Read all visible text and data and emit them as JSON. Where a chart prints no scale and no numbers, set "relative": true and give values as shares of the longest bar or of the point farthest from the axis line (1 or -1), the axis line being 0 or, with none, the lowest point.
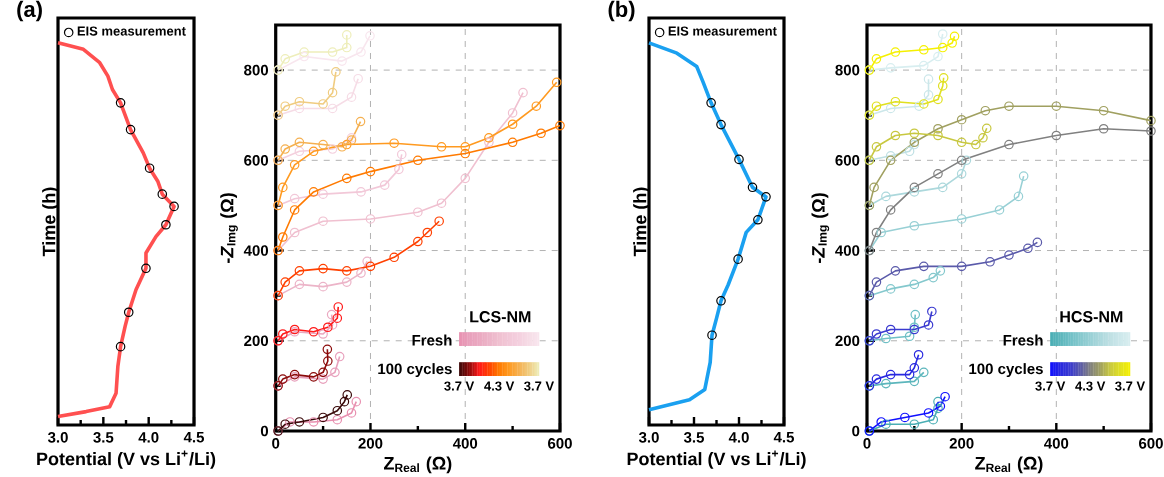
{
  "chart_data": [
    {
      "type": "line",
      "title": "(a)",
      "xlabel": "Potential (V vs Li$^{+}$/Li)",
      "ylabel": "Time (h)",
      "relative": true,
      "xlim": [
        3.0,
        4.5
      ],
      "xticks": [
        {
          "value": 3,
          "label": "3.0"
        },
        {
          "value": 3.25,
          "label": null
        },
        {
          "value": 3.5,
          "label": "3.5"
        },
        {
          "value": 3.75,
          "label": null
        },
        {
          "value": 4,
          "label": "4.0"
        },
        {
          "value": 4.25,
          "label": null
        },
        {
          "value": 4.5,
          "label": "4.5"
        }
      ],
      "tick_labels": "x",
      "legend": "top left",
      "series": [
        {
          "color": "#ff5050",
          "x": [
            3.0,
            3.28,
            3.46,
            3.55,
            3.6,
            3.69,
            3.8,
            3.94,
            4.01,
            4.1,
            4.15,
            4.28,
            4.19,
            4.08,
            3.97,
            3.97,
            3.86,
            3.78,
            3.74,
            3.69,
            3.66,
            3.64,
            3.57,
            3.31,
            3.0
          ],
          "values": [
            1,
            0.983,
            0.948,
            0.913,
            0.878,
            0.843,
            0.773,
            0.712,
            0.672,
            0.638,
            0.604,
            0.572,
            0.524,
            0.493,
            0.45,
            0.41,
            0.354,
            0.295,
            0.258,
            0.205,
            0.153,
            0.083,
            0.048,
            0.035,
            0.022
          ]
        },
        {
          "name": "EIS measurement",
          "type": "scatter",
          "marker": "circle",
          "color": "#000000",
          "x": [
            3.69,
            3.8,
            4.01,
            4.15,
            4.28,
            4.19,
            3.97,
            3.78,
            3.69
          ],
          "values": [
            0.843,
            0.773,
            0.672,
            0.604,
            0.572,
            0.524,
            0.41,
            0.295,
            0.205
          ]
        }
      ]
    },
    {
      "type": "line",
      "xlabel": "Z$_{Real}$ (Ω)",
      "ylabel": "-*Z*$_{Img}$ (Ω)",
      "legend_title": "LCS-NM",
      "annotations": [
        "Fresh",
        "100 cycles",
        "3.7 V",
        "4.3 V",
        "3.7 V"
      ],
      "xlim": [
        0,
        600
      ],
      "ylim": [
        0,
        900
      ],
      "xticks": [
        0,
        {
          "value": 100,
          "label": null
        },
        200,
        {
          "value": 300,
          "label": null
        },
        400,
        {
          "value": 500,
          "label": null
        },
        600
      ],
      "yticks": [
        0,
        {
          "value": 100,
          "label": null
        },
        200,
        {
          "value": 300,
          "label": null
        },
        400,
        {
          "value": 500,
          "label": null
        },
        600,
        {
          "value": 700,
          "label": null
        },
        800
      ],
      "grid": true,
      "marker": "circle",
      "line_style": "solid",
      "series": [
        {
          "color": "#e890b0",
          "x": [
            5,
            30,
            80,
            130,
            160,
            170
          ],
          "values": [
            0,
            20,
            20,
            25,
            40,
            65
          ]
        },
        {
          "color": "#e8a0bc",
          "x": [
            5,
            40,
            100,
            125,
            135
          ],
          "values": [
            100,
            120,
            115,
            130,
            165
          ]
        },
        {
          "color": "#eaa8c0",
          "x": [
            5,
            40,
            100,
            120,
            118
          ],
          "values": [
            200,
            220,
            215,
            235,
            258
          ]
        },
        {
          "color": "#ecb4c8",
          "x": [
            5,
            50,
            100,
            150,
            180,
            193
          ],
          "values": [
            300,
            325,
            320,
            330,
            350,
            376
          ]
        },
        {
          "color": "#f0c0d0",
          "x": [
            5,
            40,
            100,
            200,
            300,
            350,
            400,
            450,
            500,
            522
          ],
          "values": [
            400,
            440,
            465,
            470,
            485,
            505,
            560,
            640,
            705,
            750
          ]
        },
        {
          "color": "#f2c8d8",
          "x": [
            5,
            40,
            100,
            180,
            230,
            260,
            266
          ],
          "values": [
            500,
            515,
            525,
            530,
            545,
            580,
            613
          ]
        },
        {
          "color": "#f4d0de",
          "x": [
            5,
            50,
            120,
            160
          ],
          "values": [
            600,
            620,
            625,
            650
          ]
        },
        {
          "color": "#f6dce6",
          "x": [
            5,
            50,
            120,
            160,
            174
          ],
          "values": [
            700,
            715,
            715,
            740,
            781
          ]
        },
        {
          "color": "#f8e6ee",
          "x": [
            5,
            60,
            140,
            180,
            199
          ],
          "values": [
            800,
            830,
            820,
            840,
            876
          ]
        },
        {
          "color": "#3a0a0a",
          "x": [
            5,
            20,
            50,
            100,
            130,
            145,
            151
          ],
          "values": [
            0,
            15,
            20,
            30,
            45,
            65,
            80
          ]
        },
        {
          "color": "#8b0a0a",
          "x": [
            5,
            15,
            40,
            80,
            100,
            110,
            109
          ],
          "values": [
            100,
            115,
            125,
            120,
            130,
            155,
            181
          ]
        },
        {
          "color": "#ff1a1a",
          "x": [
            5,
            15,
            40,
            80,
            110,
            130,
            132
          ],
          "values": [
            200,
            215,
            225,
            220,
            230,
            250,
            275
          ]
        },
        {
          "color": "#ff4000",
          "x": [
            5,
            20,
            50,
            100,
            150,
            200,
            250,
            300,
            320,
            345
          ],
          "values": [
            300,
            330,
            355,
            360,
            355,
            365,
            385,
            420,
            440,
            465
          ]
        },
        {
          "color": "#ff7a00",
          "x": [
            5,
            15,
            40,
            80,
            150,
            200,
            300,
            400,
            500,
            560,
            600
          ],
          "values": [
            400,
            430,
            490,
            530,
            560,
            575,
            600,
            615,
            640,
            660,
            677
          ]
        },
        {
          "color": "#ff9a20",
          "x": [
            5,
            15,
            40,
            80,
            150,
            250,
            350,
            400,
            450,
            500,
            550,
            593
          ],
          "values": [
            500,
            540,
            590,
            620,
            635,
            638,
            630,
            630,
            650,
            680,
            720,
            773
          ]
        },
        {
          "color": "#f5b050",
          "x": [
            5,
            20,
            50,
            100,
            140,
            160,
            179
          ],
          "values": [
            600,
            625,
            640,
            635,
            630,
            645,
            686
          ]
        },
        {
          "color": "#f0cc80",
          "x": [
            5,
            20,
            50,
            100,
            120,
            127
          ],
          "values": [
            700,
            720,
            730,
            725,
            750,
            796
          ]
        },
        {
          "color": "#eeeebb",
          "x": [
            5,
            20,
            60,
            120,
            150,
            150
          ],
          "values": [
            800,
            825,
            840,
            840,
            850,
            878
          ]
        }
      ]
    },
    {
      "type": "line",
      "title": "(b)",
      "xlabel": "Potential (V vs Li$^{+}$/Li)",
      "ylabel": "Time (h)",
      "relative": true,
      "xlim": [
        3.0,
        4.5
      ],
      "xticks": [
        {
          "value": 3,
          "label": "3.0"
        },
        {
          "value": 3.25,
          "label": null
        },
        {
          "value": 3.5,
          "label": "3.5"
        },
        {
          "value": 3.75,
          "label": null
        },
        {
          "value": 4,
          "label": "4.0"
        },
        {
          "value": 4.25,
          "label": null
        },
        {
          "value": 4.5,
          "label": "4.5"
        }
      ],
      "tick_labels": "x",
      "legend": "top left",
      "series": [
        {
          "color": "#1aa0f0",
          "x": [
            3.0,
            3.31,
            3.53,
            3.6,
            3.69,
            3.8,
            4.0,
            4.15,
            4.3,
            4.21,
            4.08,
            3.99,
            3.88,
            3.8,
            3.75,
            3.7,
            3.68,
            3.62,
            3.45,
            3.0
          ],
          "values": [
            1,
            0.973,
            0.938,
            0.898,
            0.843,
            0.786,
            0.695,
            0.622,
            0.597,
            0.537,
            0.504,
            0.434,
            0.367,
            0.325,
            0.279,
            0.235,
            0.164,
            0.093,
            0.066,
            0.04
          ]
        },
        {
          "name": "EIS measurement",
          "type": "scatter",
          "marker": "circle",
          "color": "#000000",
          "x": [
            3.69,
            3.8,
            4.0,
            4.15,
            4.3,
            4.21,
            3.99,
            3.8,
            3.7
          ],
          "values": [
            0.843,
            0.786,
            0.695,
            0.622,
            0.597,
            0.537,
            0.434,
            0.325,
            0.235
          ]
        }
      ]
    },
    {
      "type": "line",
      "xlabel": "Z$_{Real}$ (Ω)",
      "ylabel": "-*Z*$_{Img}$ (Ω)",
      "legend_title": "HCS-NM",
      "annotations": [
        "Fresh",
        "100 cycles",
        "3.7 V",
        "4.3 V",
        "3.7 V"
      ],
      "xlim": [
        0,
        600
      ],
      "ylim": [
        0,
        900
      ],
      "xticks": [
        0,
        {
          "value": 100,
          "label": null
        },
        200,
        {
          "value": 300,
          "label": null
        },
        400,
        {
          "value": 500,
          "label": null
        },
        600
      ],
      "yticks": [
        0,
        {
          "value": 100,
          "label": null
        },
        200,
        {
          "value": 300,
          "label": null
        },
        400,
        {
          "value": 500,
          "label": null
        },
        600,
        {
          "value": 700,
          "label": null
        },
        800
      ],
      "grid": true,
      "marker": "circle",
      "line_style": "solid",
      "series": [
        {
          "color": "#4aaeb4",
          "x": [
            5,
            40,
            100,
            140,
            150,
            150
          ],
          "values": [
            0,
            15,
            15,
            25,
            50,
            65
          ]
        },
        {
          "color": "#5cb6bc",
          "x": [
            5,
            40,
            100,
            120
          ],
          "values": [
            100,
            105,
            110,
            130
          ]
        },
        {
          "color": "#70c0c6",
          "x": [
            5,
            40,
            90,
            100,
            102
          ],
          "values": [
            200,
            205,
            210,
            230,
            258
          ]
        },
        {
          "color": "#84c8cd",
          "x": [
            5,
            50,
            100,
            140,
            155
          ],
          "values": [
            300,
            315,
            325,
            340,
            355
          ]
        },
        {
          "color": "#98d0d5",
          "x": [
            5,
            30,
            100,
            200,
            280,
            320,
            331
          ],
          "values": [
            400,
            440,
            455,
            470,
            490,
            520,
            565
          ]
        },
        {
          "color": "#acd8dc",
          "x": [
            5,
            40,
            100,
            160,
            200,
            210
          ],
          "values": [
            500,
            520,
            530,
            540,
            570,
            600
          ]
        },
        {
          "color": "#bfe0e4",
          "x": [
            5,
            50,
            90,
            100
          ],
          "values": [
            600,
            610,
            620,
            635
          ]
        },
        {
          "color": "#cce7ea",
          "x": [
            5,
            50,
            110,
            130,
            130
          ],
          "values": [
            700,
            715,
            720,
            745,
            780
          ]
        },
        {
          "color": "#d8eef0",
          "x": [
            5,
            50,
            120,
            150,
            160
          ],
          "values": [
            800,
            805,
            810,
            830,
            880
          ]
        },
        {
          "color": "#1010ff",
          "x": [
            5,
            30,
            80,
            130,
            155,
            165
          ],
          "values": [
            0,
            20,
            30,
            40,
            55,
            76
          ]
        },
        {
          "color": "#2828e0",
          "x": [
            5,
            20,
            50,
            90,
            100,
            109
          ],
          "values": [
            100,
            115,
            125,
            125,
            140,
            169
          ]
        },
        {
          "color": "#3a3ad0",
          "x": [
            5,
            20,
            50,
            100,
            130,
            137
          ],
          "values": [
            200,
            215,
            225,
            225,
            235,
            265
          ]
        },
        {
          "color": "#5a5aaa",
          "x": [
            5,
            20,
            60,
            120,
            200,
            260,
            300,
            340,
            360
          ],
          "values": [
            300,
            330,
            355,
            365,
            365,
            375,
            390,
            405,
            418
          ]
        },
        {
          "color": "#808080",
          "x": [
            5,
            20,
            50,
            100,
            150,
            200,
            300,
            400,
            500,
            600
          ],
          "values": [
            400,
            440,
            490,
            540,
            570,
            600,
            635,
            655,
            670,
            665
          ]
        },
        {
          "color": "#a0a060",
          "x": [
            5,
            15,
            50,
            100,
            150,
            200,
            250,
            300,
            400,
            500,
            600
          ],
          "values": [
            500,
            540,
            600,
            640,
            670,
            690,
            710,
            720,
            720,
            710,
            688
          ]
        },
        {
          "color": "#c8c840",
          "x": [
            5,
            20,
            60,
            100,
            150,
            200,
            230,
            245,
            253
          ],
          "values": [
            600,
            630,
            655,
            660,
            655,
            640,
            635,
            650,
            671
          ]
        },
        {
          "color": "#e0e020",
          "x": [
            5,
            20,
            60,
            120,
            150,
            160,
            162
          ],
          "values": [
            700,
            720,
            730,
            725,
            735,
            765,
            783
          ]
        },
        {
          "color": "#f5f000",
          "x": [
            5,
            20,
            60,
            120,
            160,
            180,
            185
          ],
          "values": [
            800,
            825,
            840,
            845,
            850,
            860,
            875
          ]
        }
      ]
    }
  ]
}
